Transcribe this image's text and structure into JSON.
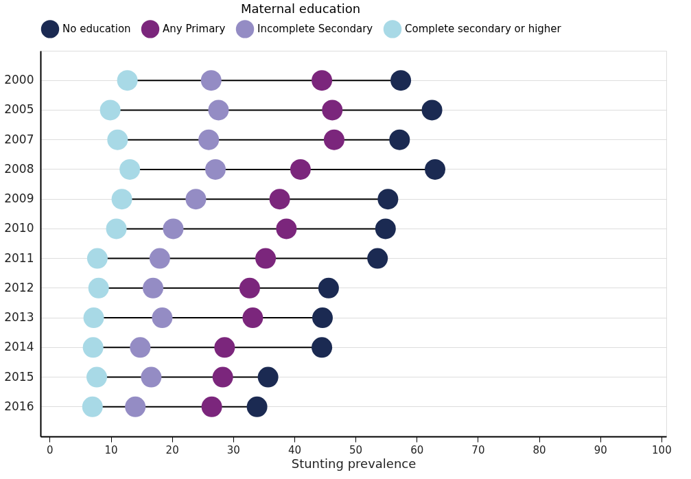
{
  "chart_data": {
    "type": "scatter",
    "orientation": "horizontal",
    "xlabel": "Stunting prevalence",
    "legend_title": "Maternal education",
    "legend": "top",
    "grid": "y",
    "marker": "circle",
    "categories": [
      "2000",
      "2005",
      "2007",
      "2008",
      "2009",
      "2010",
      "2011",
      "2012",
      "2013",
      "2014",
      "2015",
      "2016"
    ],
    "xlim": [
      -1.5,
      100.8
    ],
    "xticks": [
      0,
      10,
      20,
      30,
      40,
      50,
      60,
      70,
      80,
      90,
      100
    ],
    "series": [
      {
        "name": "No education",
        "color": "#1b2a52",
        "values": [
          57.4,
          62.5,
          57.2,
          63.0,
          55.3,
          54.9,
          53.6,
          45.6,
          44.6,
          44.5,
          35.7,
          33.9
        ]
      },
      {
        "name": "Any Primary",
        "color": "#7b267c",
        "values": [
          44.5,
          46.2,
          46.5,
          41.0,
          37.6,
          38.7,
          35.3,
          32.7,
          33.2,
          28.6,
          28.3,
          26.5
        ]
      },
      {
        "name": "Incomplete Secondary",
        "color": "#948cc4",
        "values": [
          26.4,
          27.6,
          26.0,
          27.1,
          23.9,
          20.2,
          18.0,
          16.9,
          18.4,
          14.8,
          16.6,
          14.0
        ]
      },
      {
        "name": "Complete secondary or higher",
        "color": "#a8d9e6",
        "values": [
          12.7,
          9.9,
          11.1,
          13.1,
          11.8,
          10.9,
          7.8,
          8.0,
          7.2,
          7.1,
          7.7,
          7.0
        ]
      }
    ]
  }
}
